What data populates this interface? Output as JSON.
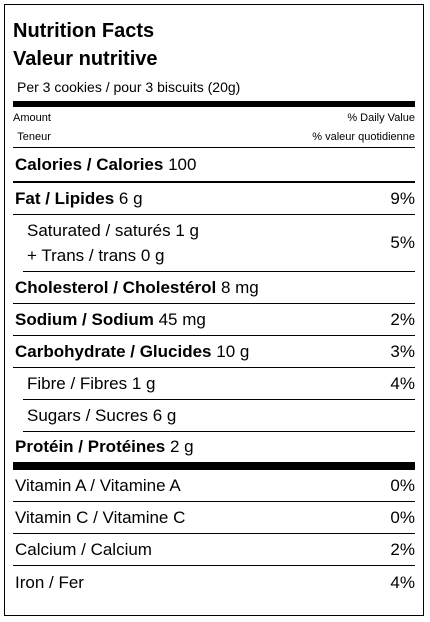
{
  "header": {
    "title": "Nutrition Facts",
    "subtitle": "Valeur nutritive",
    "serving": "Per 3 cookies / pour 3 biscuits (20g)"
  },
  "columns": {
    "amount": "Amount",
    "amount_fr": "Teneur",
    "daily_value": "% Daily Value",
    "daily_value_fr": "% valeur quotidienne"
  },
  "nutrients": [
    {
      "bold_label": "Calories / Calories",
      "amount": "100"
    },
    {
      "bold_label": "Fat / Lipides",
      "amount": "6 g",
      "dv": "9%"
    },
    {
      "lines": [
        {
          "label": "Saturated / saturés",
          "amount": "1 g"
        },
        {
          "label": "+ Trans / trans",
          "amount": "0 g"
        }
      ],
      "dv": "5%"
    },
    {
      "bold_label": "Cholesterol / Cholestérol",
      "amount": "8 mg"
    },
    {
      "bold_label": "Sodium / Sodium",
      "amount": "45 mg",
      "dv": "2%"
    },
    {
      "bold_label": "Carbohydrate / Glucides",
      "amount": "10 g",
      "dv": "3%"
    },
    {
      "label": "Fibre / Fibres",
      "amount": "1 g",
      "dv": "4%"
    },
    {
      "label": "Sugars / Sucres",
      "amount": "6 g"
    },
    {
      "bold_label": "Protéin / Protéines",
      "amount": "2 g"
    }
  ],
  "vitamins": [
    {
      "label": "Vitamin A / Vitamine A",
      "dv": "0%"
    },
    {
      "label": "Vitamin C / Vitamine C",
      "dv": "0%"
    },
    {
      "label": "Calcium / Calcium",
      "dv": "2%"
    },
    {
      "label": "Iron / Fer",
      "dv": "4%"
    }
  ]
}
